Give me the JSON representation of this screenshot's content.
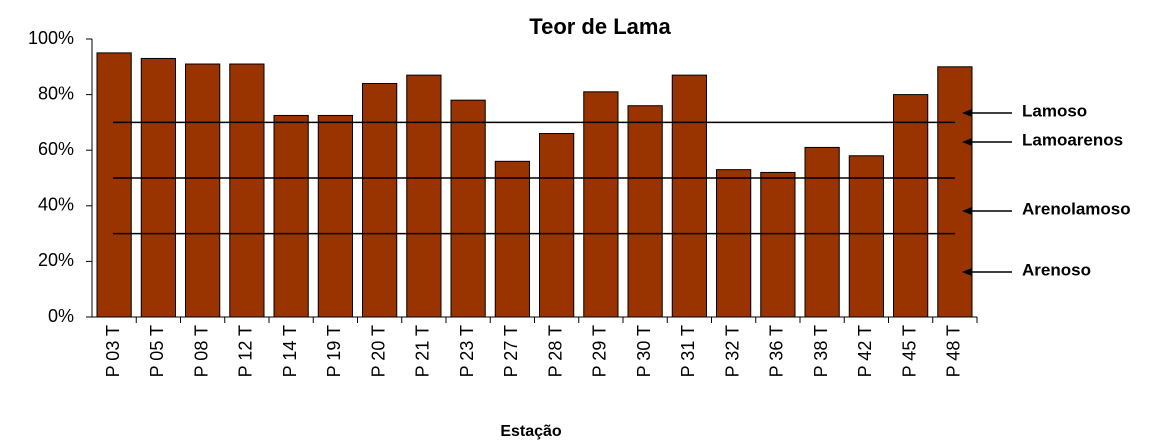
{
  "chart_data": {
    "type": "bar",
    "title": "Teor de Lama",
    "x_label": "Estação",
    "categories": [
      "P 03 T",
      "P 05 T",
      "P 08 T",
      "P 12 T",
      "P 14 T",
      "P 19 T",
      "P 20 T",
      "P 21 T",
      "P 23 T",
      "P 27 T",
      "P 28 T",
      "P 29 T",
      "P 30 T",
      "P 31 T",
      "P 32 T",
      "P 36 T",
      "P 38 T",
      "P 42 T",
      "P 45 T",
      "P 48 T"
    ],
    "values": [
      95,
      93,
      91,
      91,
      72.5,
      72.5,
      84,
      87,
      78,
      56,
      66,
      81,
      76,
      87,
      53,
      52,
      61,
      58,
      80,
      90
    ],
    "color": "#993300",
    "ylim": [
      0,
      100
    ],
    "yticks": [
      {
        "value": 0,
        "label": "0%"
      },
      {
        "value": 20,
        "label": "20%"
      },
      {
        "value": 40,
        "label": "40%"
      },
      {
        "value": 60,
        "label": "60%"
      },
      {
        "value": 80,
        "label": "80%"
      },
      {
        "value": 100,
        "label": "100%"
      }
    ],
    "thresholds": [
      70,
      50,
      30
    ],
    "annotations": [
      "Lamoso",
      "Lamoarenos",
      "Arenolamoso",
      "Arenoso"
    ]
  }
}
